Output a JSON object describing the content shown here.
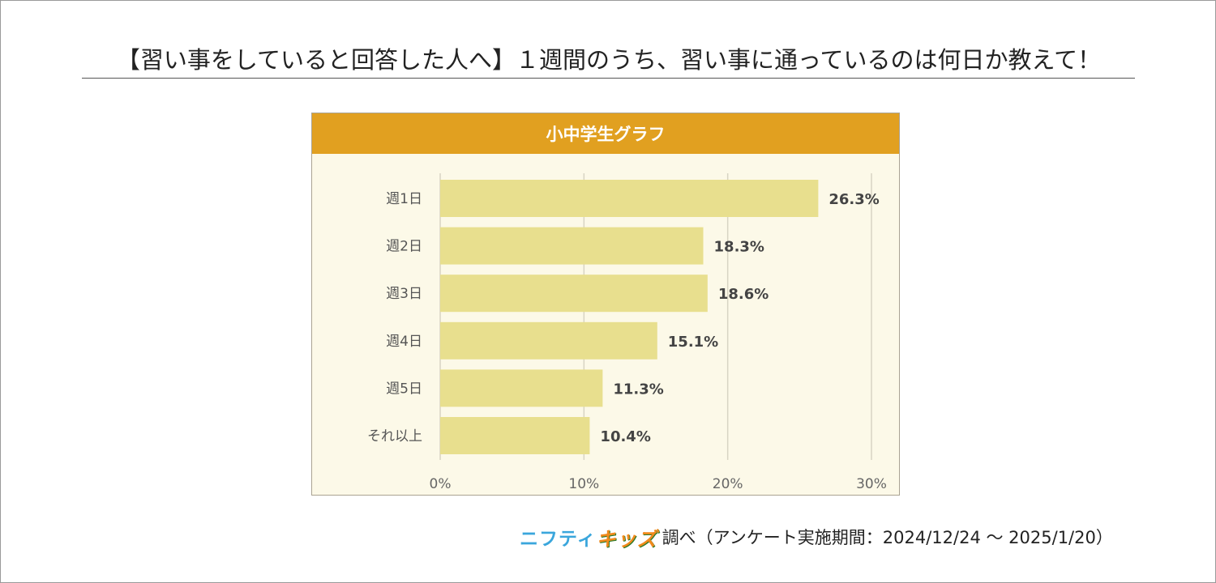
{
  "headline": "【習い事をしていると回答した人へ】１週間のうち、習い事に通っているのは何日か教えて！",
  "panel_title": "小中学生グラフ",
  "footer": {
    "logo_part1": "ニフティ",
    "logo_part2": "キッズ",
    "source": "調べ（アンケート実施期間：2024/12/24 〜 2025/1/20）"
  },
  "colors": {
    "header": "#e1a020",
    "panel_bg": "#fcf9e8",
    "bar": "#e8df8e",
    "grid": "#d8d4c4"
  },
  "chart_data": {
    "type": "bar",
    "orientation": "horizontal",
    "title": "小中学生グラフ",
    "categories": [
      "週1日",
      "週2日",
      "週3日",
      "週4日",
      "週5日",
      "それ以上"
    ],
    "values": [
      26.3,
      18.3,
      18.6,
      15.1,
      11.3,
      10.4
    ],
    "value_labels": [
      "26.3%",
      "18.3%",
      "18.6%",
      "15.1%",
      "11.3%",
      "10.4%"
    ],
    "xlim": [
      0,
      30
    ],
    "xticks": [
      0,
      10,
      20,
      30
    ],
    "xtick_labels": [
      "0%",
      "10%",
      "20%",
      "30%"
    ],
    "xlabel": "",
    "ylabel": "",
    "grid": true
  }
}
